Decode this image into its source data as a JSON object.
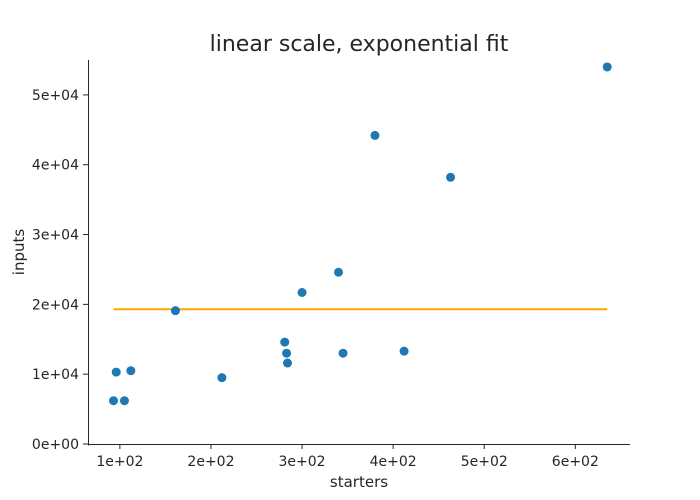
{
  "chart_data": {
    "type": "scatter",
    "title": "linear scale, exponential fit",
    "xlabel": "starters",
    "ylabel": "inputs",
    "xlim": [
      65,
      660
    ],
    "ylim": [
      0,
      55000
    ],
    "grid": false,
    "x_ticks": [
      100,
      200,
      300,
      400,
      500,
      600
    ],
    "x_tick_labels": [
      "1e+02",
      "2e+02",
      "3e+02",
      "4e+02",
      "5e+02",
      "6e+02"
    ],
    "y_ticks": [
      0,
      10000,
      20000,
      30000,
      40000,
      50000
    ],
    "y_tick_labels": [
      "0e+00",
      "1e+04",
      "2e+04",
      "3e+04",
      "4e+04",
      "5e+04"
    ],
    "series": [
      {
        "type": "scatter",
        "color": "#1f77b4",
        "points": [
          {
            "x": 93,
            "y": 6200
          },
          {
            "x": 96,
            "y": 10300
          },
          {
            "x": 105,
            "y": 6200
          },
          {
            "x": 112,
            "y": 10500
          },
          {
            "x": 161,
            "y": 19100
          },
          {
            "x": 212,
            "y": 9500
          },
          {
            "x": 281,
            "y": 14600
          },
          {
            "x": 283,
            "y": 13000
          },
          {
            "x": 284,
            "y": 11600
          },
          {
            "x": 300,
            "y": 21700
          },
          {
            "x": 340,
            "y": 24600
          },
          {
            "x": 345,
            "y": 13000
          },
          {
            "x": 380,
            "y": 44200
          },
          {
            "x": 412,
            "y": 13300
          },
          {
            "x": 463,
            "y": 38200
          },
          {
            "x": 635,
            "y": 54000
          }
        ]
      },
      {
        "type": "line",
        "color": "#ffa500",
        "points": [
          {
            "x": 93,
            "y": 19300
          },
          {
            "x": 635,
            "y": 19300
          }
        ]
      }
    ]
  }
}
